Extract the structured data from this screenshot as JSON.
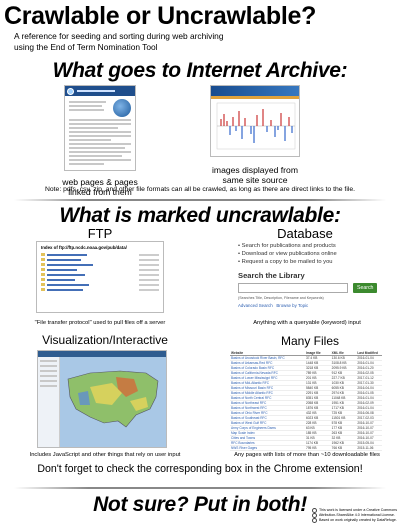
{
  "header": {
    "title": "Crawlable or Uncrawlable?",
    "subtitle_line1": "A reference for seeding and sorting during web archiving",
    "subtitle_line2": "using the End of Term Nomination Tool"
  },
  "section_archive": {
    "heading": "What goes to Internet Archive:",
    "left_caption_1": "web pages & pages",
    "left_caption_2": "linked from them",
    "right_caption_1": "images displayed from",
    "right_caption_2": "same site source",
    "note": "Note: pdfs, csv, zip, and other file formats can all be crawled, as long as there are direct links to the file."
  },
  "section_uncrawlable": {
    "heading": "What is marked uncrawlable:",
    "ftp": {
      "label": "FTP",
      "thumb_title": "Index of ftp://ftp.ncdc.noaa.gov/pub/data/",
      "caption": "\"File transfer protocol\" used to pull files off a server"
    },
    "database": {
      "label": "Database",
      "bullet1": "Search for publications and products",
      "bullet2": "Download or view publications online",
      "bullet3": "Request a copy to be mailed to you",
      "search_heading": "Search the Library",
      "search_button": "Search",
      "search_hint": "(Searches Title, Description, Filename and Keywords)",
      "links": "Advanced Search   Browse by Topic",
      "caption": "Anything with a queryable (keyword) input"
    },
    "visual": {
      "label": "Visualization/Interactive",
      "caption": "Includes JavaScript and other things that rely on user input"
    },
    "many_files": {
      "label": "Many Files",
      "columns": [
        "Website",
        "Image file",
        "XML file",
        "Last Modified"
      ],
      "rows": [
        [
          "Basins of Aroostook River Basin, RFC",
          "37.4 KB",
          "130.6 KB",
          "2016-01-04"
        ],
        [
          "Basins of Arkansas-Red RFC",
          "1448 KB",
          "3108.8 KB",
          "2016-01-04"
        ],
        [
          "Basins of Colorado Basin RFC",
          "3218 KB",
          "2095.9 KB",
          "2016-01-20"
        ],
        [
          "Basins of California-Nevada RFC",
          "789 KB",
          "912 KB",
          "2016-02-05"
        ],
        [
          "Basins of Lower Mississippi RFC",
          "201 KB",
          "227.7 KB",
          "2017-01-12"
        ],
        [
          "Basins of Mid-Atlantic RFC",
          "131 KB",
          "1030 KB",
          "2017-01-30"
        ],
        [
          "Basins of Missouri Basin RFC",
          "5840 KB",
          "6055 KB",
          "2016-04-04"
        ],
        [
          "Basins of Middle Atlantic RFC",
          "2291 KB",
          "2974 KB",
          "2016-01-05"
        ],
        [
          "Basins of North Central RFC",
          "8351 KB",
          "11048 KB",
          "2016-01-04"
        ],
        [
          "Basins of Northeast RFC",
          "2058 KB",
          "1951 KB",
          "2016-02-09"
        ],
        [
          "Basins of Northwest RFC",
          "1876 KB",
          "1717 KB",
          "2016-01-04"
        ],
        [
          "Basins of Ohio River RFC",
          "432 KB",
          "725 KB",
          "2016-06-08"
        ],
        [
          "Basins of Southeast RFC",
          "6023 KB",
          "11501 KB",
          "2017-02-03"
        ],
        [
          "Basins of West Gulf RFC",
          "228 KB",
          "578 KB",
          "2016-10-07"
        ],
        [
          "Army Corps of Engineers Dams",
          "63 KB",
          "177 KB",
          "2016-10-07"
        ],
        [
          "Map Scale Index",
          "185 KB",
          "263 KB",
          "2016-10-07"
        ],
        [
          "Cities and Towns",
          "31 KB",
          "32 KB",
          "2016-10-07"
        ],
        [
          "RFC Boundaries",
          "1174 KB",
          "1962 KB",
          "2015-05-04"
        ],
        [
          "NWS River Gages",
          "795 KB",
          "766 KB",
          "2015-11-06"
        ]
      ],
      "caption": "Any pages with lists of more than ~10 downloadable files"
    },
    "reminder": "Don't forget to check the corresponding box in the Chrome extension!"
  },
  "footer": {
    "heading": "Not sure? Put in both!",
    "license_line1": "This work is licensed under a Creative Commons",
    "license_line2": "Attribution-ShareAlike 4.0 International License.",
    "license_line3": "Based on work originally created by DataRefuge."
  },
  "colors": {
    "accent_green": "#3c8a2e",
    "database_link": "#2a5db0",
    "divider_gray": "#888888"
  }
}
